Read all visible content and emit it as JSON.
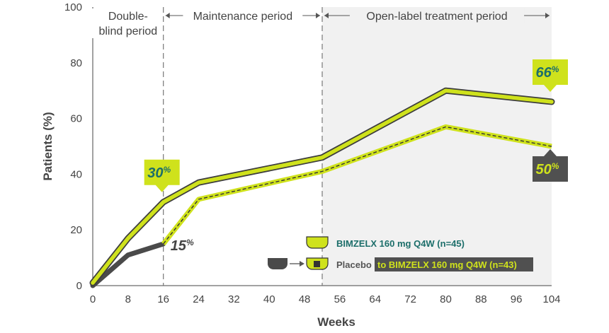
{
  "chart_data": {
    "type": "line",
    "xlabel": "Weeks",
    "ylabel": "Patients (%)",
    "xlim": [
      0,
      104
    ],
    "ylim": [
      0,
      100
    ],
    "x_ticks": [
      0,
      8,
      16,
      24,
      32,
      40,
      48,
      56,
      64,
      72,
      80,
      88,
      96,
      104
    ],
    "y_ticks": [
      0,
      20,
      40,
      60,
      80,
      100
    ],
    "grid": false,
    "periods": [
      {
        "label_lines": [
          "Double-",
          "blind period"
        ],
        "x_start": 0,
        "x_end": 16
      },
      {
        "label_lines": [
          "Maintenance period"
        ],
        "x_start": 16,
        "x_end": 52
      },
      {
        "label_lines": [
          "Open-label treatment period"
        ],
        "x_start": 52,
        "x_end": 104,
        "shaded": true
      }
    ],
    "series": [
      {
        "key": "bimzelx",
        "color": "#cfe21c",
        "outline": "#3d3d3d",
        "points": [
          [
            0,
            1
          ],
          [
            8,
            17
          ],
          [
            16,
            30
          ],
          [
            24,
            37
          ],
          [
            52,
            46
          ],
          [
            80,
            70
          ],
          [
            104,
            66
          ]
        ]
      },
      {
        "key": "placebo",
        "color": "#4a4a4a",
        "points": [
          [
            0,
            0
          ],
          [
            8,
            11
          ],
          [
            16,
            15
          ]
        ]
      },
      {
        "key": "placebo_switch",
        "color": "#cfe21c",
        "dashed": true,
        "points": [
          [
            16,
            15
          ],
          [
            24,
            31
          ],
          [
            52,
            41
          ],
          [
            80,
            57
          ],
          [
            104,
            50
          ]
        ]
      }
    ],
    "annotations": [
      {
        "num": "30",
        "unit": "%",
        "x": 16,
        "y": 30,
        "style": "green-box-above"
      },
      {
        "num": "15",
        "unit": "%",
        "x": 16,
        "y": 15,
        "style": "plain"
      },
      {
        "num": "66",
        "unit": "%",
        "x": 104,
        "y": 66,
        "style": "green-box-above"
      },
      {
        "num": "50",
        "unit": "%",
        "x": 104,
        "y": 50,
        "style": "dark-box-below"
      }
    ],
    "legend": {
      "position": "bottom-right",
      "entry1": "BIMZELX 160 mg Q4W (n=45)",
      "entry2_prefix": "Placebo",
      "entry2_highlight": "to BIMZELX 160 mg Q4W (n=43)"
    }
  },
  "colors": {
    "bimzelx": "#cfe21c",
    "placebo": "#4a4a4a",
    "teal": "#1c6e6a",
    "shade": "#f1f1f1",
    "axis": "#444444"
  }
}
